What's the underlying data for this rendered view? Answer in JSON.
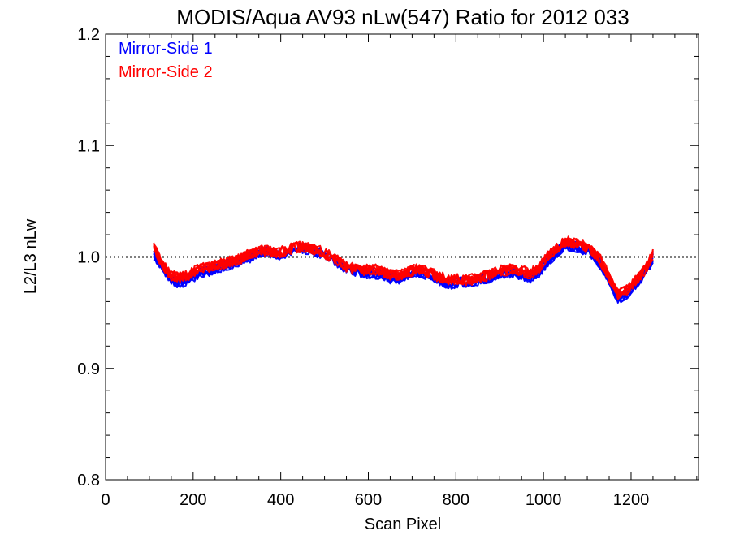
{
  "chart_data": {
    "type": "line",
    "title": "MODIS/Aqua AV93 nLw(547) Ratio for 2012 033",
    "xlabel": "Scan Pixel",
    "ylabel": "L2/L3 nLw",
    "xlim": [
      0,
      1354
    ],
    "ylim": [
      0.8,
      1.2
    ],
    "x_ticks": [
      0,
      200,
      400,
      600,
      800,
      1000,
      1200
    ],
    "y_ticks": [
      0.8,
      0.9,
      1.0,
      1.1,
      1.2
    ],
    "x_tick_labels": [
      "0",
      "200",
      "400",
      "600",
      "800",
      "1000",
      "1200"
    ],
    "y_tick_labels": [
      "0.8",
      "0.9",
      "1.0",
      "1.1",
      "1.2"
    ],
    "grid": false,
    "reference_line": 1.0,
    "legend_position": "top-left",
    "legend": [
      "Mirror-Side 1",
      "Mirror-Side 2"
    ],
    "colors": {
      "mirror_side_1": "#0000ff",
      "mirror_side_2": "#ff0000",
      "reference": "#000000"
    },
    "x": [
      110,
      130,
      150,
      170,
      190,
      210,
      230,
      250,
      270,
      290,
      310,
      330,
      350,
      370,
      390,
      410,
      430,
      450,
      470,
      490,
      510,
      530,
      550,
      570,
      590,
      610,
      630,
      650,
      670,
      690,
      710,
      730,
      750,
      770,
      790,
      810,
      830,
      850,
      870,
      890,
      910,
      930,
      950,
      970,
      990,
      1010,
      1030,
      1050,
      1070,
      1090,
      1110,
      1130,
      1150,
      1170,
      1190,
      1210,
      1230,
      1250
    ],
    "series": [
      {
        "name": "Mirror-Side 1",
        "values": [
          1.0,
          0.99,
          0.978,
          0.976,
          0.979,
          0.983,
          0.986,
          0.988,
          0.991,
          0.993,
          0.996,
          0.999,
          1.003,
          1.004,
          1.001,
          1.003,
          1.006,
          1.007,
          1.005,
          1.003,
          0.999,
          0.994,
          0.989,
          0.986,
          0.984,
          0.985,
          0.983,
          0.98,
          0.98,
          0.983,
          0.986,
          0.984,
          0.981,
          0.977,
          0.975,
          0.977,
          0.976,
          0.978,
          0.98,
          0.983,
          0.985,
          0.985,
          0.983,
          0.98,
          0.985,
          0.995,
          1.003,
          1.01,
          1.008,
          1.006,
          1.002,
          0.993,
          0.978,
          0.962,
          0.966,
          0.975,
          0.983,
          0.998
        ]
      },
      {
        "name": "Mirror-Side 2",
        "values": [
          1.008,
          0.992,
          0.982,
          0.98,
          0.983,
          0.987,
          0.989,
          0.991,
          0.993,
          0.995,
          0.998,
          1.001,
          1.004,
          1.005,
          1.002,
          1.004,
          1.007,
          1.008,
          1.006,
          1.004,
          1.0,
          0.995,
          0.99,
          0.988,
          0.987,
          0.988,
          0.986,
          0.983,
          0.983,
          0.985,
          0.988,
          0.986,
          0.983,
          0.98,
          0.978,
          0.979,
          0.978,
          0.98,
          0.982,
          0.985,
          0.987,
          0.988,
          0.986,
          0.984,
          0.989,
          0.999,
          1.006,
          1.013,
          1.011,
          1.009,
          1.005,
          0.996,
          0.981,
          0.965,
          0.969,
          0.978,
          0.986,
          1.001
        ]
      }
    ]
  }
}
